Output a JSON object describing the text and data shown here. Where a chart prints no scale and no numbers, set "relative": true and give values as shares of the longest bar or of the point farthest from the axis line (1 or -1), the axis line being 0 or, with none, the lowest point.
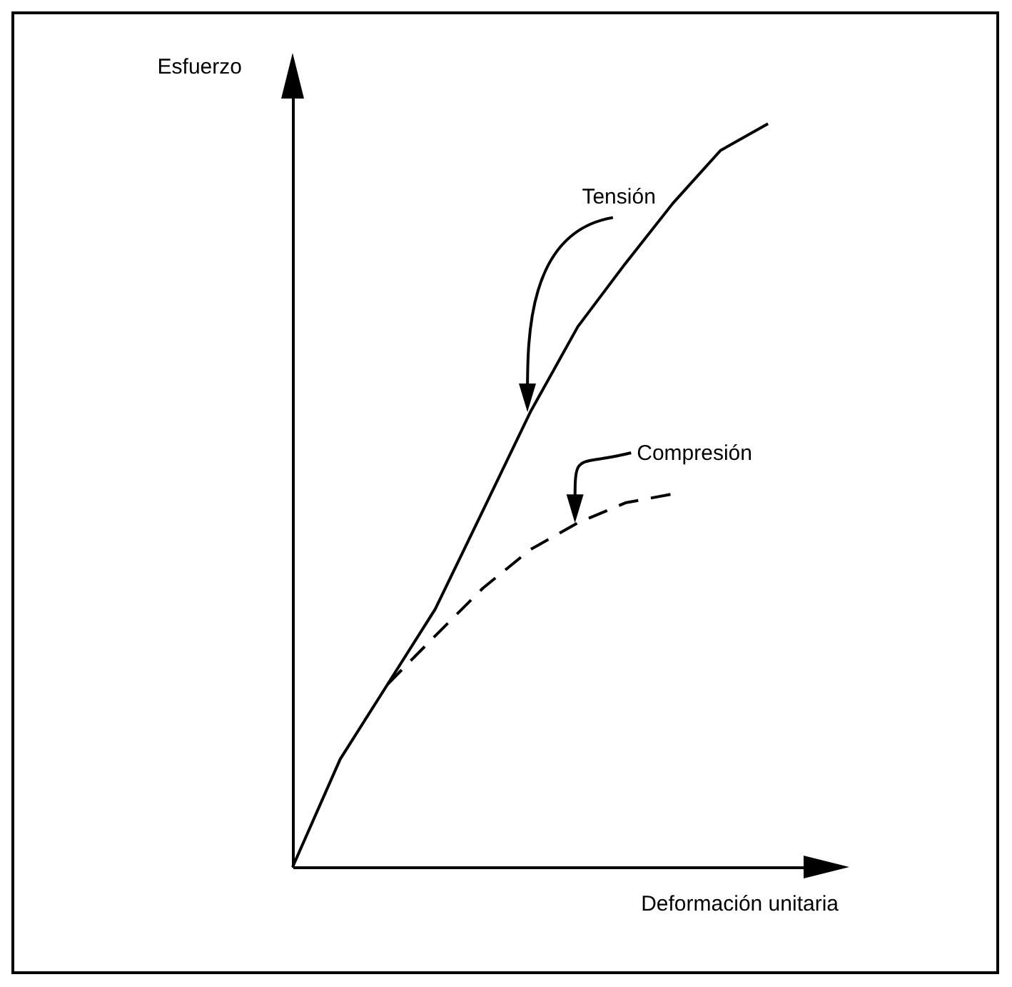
{
  "chart_data": {
    "type": "line",
    "relative": true,
    "xlabel": "Deformación unitaria",
    "ylabel": "Esfuerzo",
    "categories": [
      null,
      null,
      null,
      null,
      null,
      null,
      null,
      null,
      null,
      null,
      null
    ],
    "series": [
      {
        "name": "Tensión",
        "color": "#000000",
        "line_style": "solid",
        "values": [
          0,
          0.145,
          0.246,
          0.347,
          0.479,
          0.612,
          0.727,
          0.812,
          0.893,
          0.964,
          1.0
        ]
      },
      {
        "name": "Compresión",
        "color": "#000000",
        "line_style": "dashed",
        "values": [
          null,
          null,
          0.246,
          0.311,
          0.375,
          0.427,
          0.463,
          0.49,
          0.502,
          null,
          null
        ]
      }
    ]
  }
}
